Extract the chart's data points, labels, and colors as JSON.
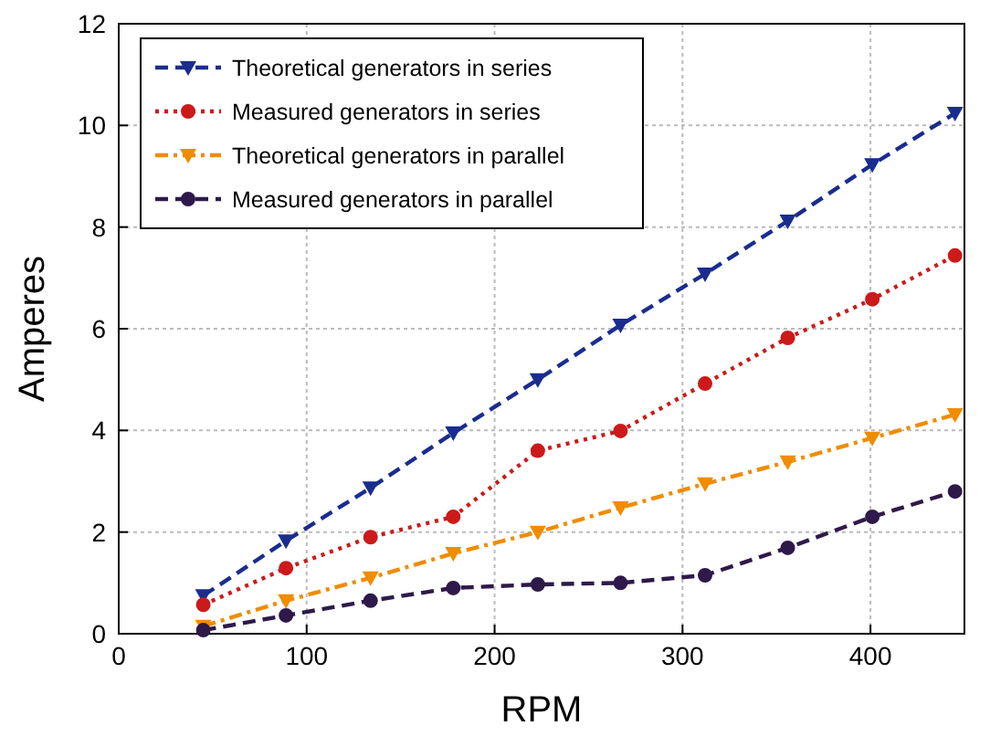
{
  "chart_data": {
    "type": "line",
    "xlabel": "RPM",
    "ylabel": "Amperes",
    "x": [
      45,
      89,
      134,
      178,
      223,
      267,
      312,
      356,
      401,
      445
    ],
    "series": [
      {
        "name": "Theoretical generators in series",
        "color": "#1a2d8f",
        "marker": "triangle",
        "line_style": "dashed",
        "values": [
          0.75,
          1.83,
          2.87,
          3.95,
          5.0,
          6.07,
          7.08,
          8.12,
          9.23,
          10.24
        ]
      },
      {
        "name": "Measured generators in series",
        "color": "#cc1a1a",
        "marker": "circle",
        "line_style": "dotted",
        "values": [
          0.57,
          1.29,
          1.9,
          2.3,
          3.6,
          3.99,
          4.92,
          5.82,
          6.58,
          7.44
        ]
      },
      {
        "name": "Theoretical generators in parallel",
        "color": "#f08c00",
        "marker": "triangle",
        "line_style": "dashdot",
        "values": [
          0.15,
          0.65,
          1.1,
          1.58,
          2.0,
          2.48,
          2.95,
          3.38,
          3.85,
          4.31
        ]
      },
      {
        "name": "Measured generators in parallel",
        "color": "#2e1a4a",
        "marker": "circle",
        "line_style": "dashed",
        "values": [
          0.07,
          0.36,
          0.65,
          0.9,
          0.97,
          1.0,
          1.15,
          1.69,
          2.3,
          2.8
        ]
      }
    ],
    "xlim": [
      0,
      450
    ],
    "xticks": [
      0,
      100,
      200,
      300,
      400
    ],
    "ylim": [
      0,
      12
    ],
    "yticks": [
      0,
      2,
      4,
      6,
      8,
      10,
      12
    ],
    "grid": true,
    "legend": "top left"
  }
}
